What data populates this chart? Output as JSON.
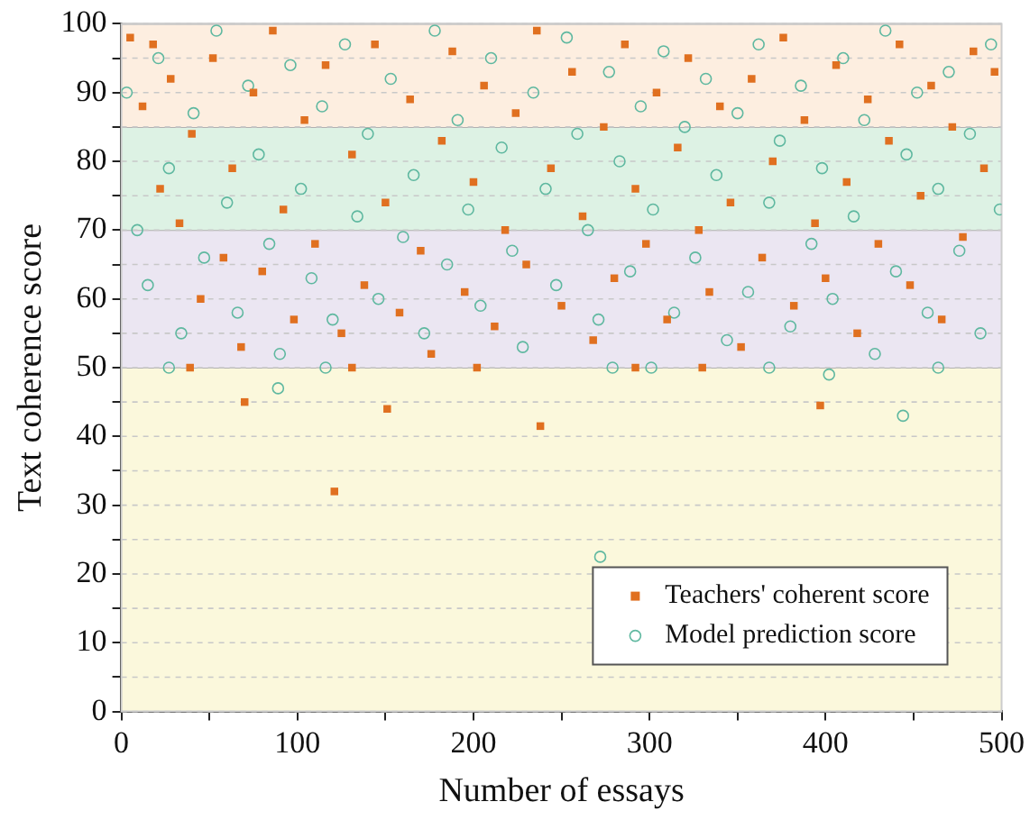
{
  "chart_data": {
    "type": "scatter",
    "xlabel": "Number of essays",
    "ylabel": "Text coherence score",
    "xlim": [
      0,
      500
    ],
    "ylim": [
      0,
      100
    ],
    "xticks": [
      0,
      {
        "value": 50,
        "label": null
      },
      100,
      {
        "value": 150,
        "label": null
      },
      200,
      {
        "value": 250,
        "label": null
      },
      300,
      {
        "value": 350,
        "label": null
      },
      400,
      {
        "value": 450,
        "label": null
      },
      500
    ],
    "yticks": [
      0,
      {
        "value": 5,
        "label": null
      },
      10,
      {
        "value": 15,
        "label": null
      },
      20,
      {
        "value": 25,
        "label": null
      },
      30,
      {
        "value": 35,
        "label": null
      },
      40,
      {
        "value": 45,
        "label": null
      },
      50,
      {
        "value": 55,
        "label": null
      },
      60,
      {
        "value": 65,
        "label": null
      },
      70,
      {
        "value": 75,
        "label": null
      },
      80,
      {
        "value": 85,
        "label": null
      },
      90,
      {
        "value": 95,
        "label": null
      },
      100
    ],
    "grid": "y",
    "legend": "bottom right",
    "bands": [
      {
        "axis": "y",
        "from": 0,
        "to": 50,
        "color": "#fbf8dc"
      },
      {
        "axis": "y",
        "from": 50,
        "to": 70,
        "color": "#ebe6f2"
      },
      {
        "axis": "y",
        "from": 70,
        "to": 85,
        "color": "#ddf2e4"
      },
      {
        "axis": "y",
        "from": 85,
        "to": 100,
        "color": "#fdeee0"
      }
    ],
    "series": [
      {
        "name": "Teachers' coherent score",
        "color": "#e07020",
        "marker": "square",
        "x": [
          5,
          12,
          18,
          22,
          28,
          33,
          40,
          45,
          52,
          58,
          63,
          68,
          75,
          80,
          86,
          92,
          98,
          104,
          110,
          116,
          125,
          131,
          138,
          144,
          150,
          158,
          164,
          170,
          176,
          182,
          188,
          195,
          200,
          206,
          212,
          218,
          224,
          230,
          236,
          244,
          250,
          256,
          262,
          268,
          274,
          280,
          286,
          292,
          298,
          304,
          310,
          316,
          322,
          328,
          334,
          340,
          346,
          352,
          358,
          364,
          370,
          376,
          382,
          388,
          394,
          400,
          406,
          412,
          418,
          424,
          430,
          436,
          442,
          448,
          454,
          460,
          466,
          472,
          478,
          484,
          490,
          496,
          70,
          121,
          151,
          238,
          397,
          39,
          131,
          202,
          292,
          330
        ],
        "values": [
          98,
          88,
          97,
          76,
          92,
          71,
          84,
          60,
          95,
          66,
          79,
          53,
          90,
          64,
          99,
          73,
          57,
          86,
          68,
          94,
          55,
          81,
          62,
          97,
          74,
          58,
          89,
          67,
          52,
          83,
          96,
          61,
          77,
          91,
          56,
          70,
          87,
          65,
          99,
          79,
          59,
          93,
          72,
          54,
          85,
          63,
          97,
          76,
          68,
          90,
          57,
          82,
          95,
          70,
          61,
          88,
          74,
          53,
          92,
          66,
          80,
          98,
          59,
          86,
          71,
          63,
          94,
          77,
          55,
          89,
          68,
          83,
          97,
          62,
          75,
          91,
          57,
          85,
          69,
          96,
          79,
          93,
          45,
          32,
          44,
          41.5,
          44.5,
          50,
          50,
          50,
          50,
          50
        ]
      },
      {
        "name": "Model prediction score",
        "color": "#5fb8a0",
        "marker": "circle",
        "x": [
          3,
          9,
          15,
          21,
          27,
          34,
          41,
          47,
          54,
          60,
          66,
          72,
          78,
          84,
          90,
          96,
          102,
          108,
          114,
          120,
          127,
          134,
          140,
          146,
          153,
          160,
          166,
          172,
          178,
          185,
          191,
          197,
          204,
          210,
          216,
          222,
          228,
          234,
          241,
          247,
          253,
          259,
          265,
          271,
          277,
          283,
          289,
          295,
          302,
          308,
          314,
          320,
          326,
          332,
          338,
          344,
          350,
          356,
          362,
          368,
          374,
          380,
          386,
          392,
          398,
          404,
          410,
          416,
          422,
          428,
          434,
          440,
          446,
          452,
          458,
          464,
          470,
          476,
          482,
          488,
          494,
          499,
          27,
          89,
          116,
          272,
          279,
          301,
          368,
          402,
          444,
          464
        ],
        "values": [
          90,
          70,
          62,
          95,
          79,
          55,
          87,
          66,
          99,
          74,
          58,
          91,
          81,
          68,
          52,
          94,
          76,
          63,
          88,
          57,
          97,
          72,
          84,
          60,
          92,
          69,
          78,
          55,
          99,
          65,
          86,
          73,
          59,
          95,
          82,
          67,
          53,
          90,
          76,
          62,
          98,
          84,
          70,
          57,
          93,
          80,
          64,
          88,
          73,
          96,
          58,
          85,
          66,
          92,
          78,
          54,
          87,
          61,
          97,
          74,
          83,
          56,
          91,
          68,
          79,
          60,
          95,
          72,
          86,
          52,
          99,
          64,
          81,
          90,
          58,
          76,
          93,
          67,
          84,
          55,
          97,
          73,
          50,
          47,
          50,
          22.5,
          50,
          50,
          50,
          49,
          43,
          50
        ]
      }
    ]
  }
}
